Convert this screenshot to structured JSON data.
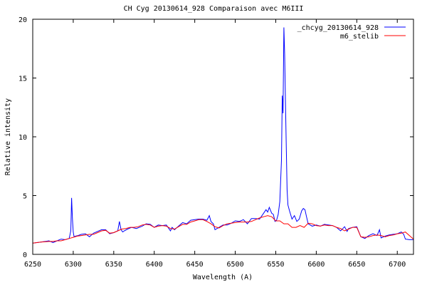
{
  "chart_data": {
    "type": "line",
    "title": "CH Cyg  20130614_928  Comparaison avec M6III",
    "xlabel": "Wavelength (A)",
    "ylabel": "Relative intensity",
    "xlim": [
      6250,
      6720
    ],
    "ylim": [
      0,
      20
    ],
    "xticks": [
      6250,
      6300,
      6350,
      6400,
      6450,
      6500,
      6550,
      6600,
      6650,
      6700
    ],
    "yticks": [
      0,
      5,
      10,
      15,
      20
    ],
    "grid": false,
    "legend_position": "top-right",
    "series": [
      {
        "name": "_chcyg_20130614_928",
        "color": "#0000ff",
        "x": [
          6250,
          6260,
          6270,
          6275,
          6280,
          6285,
          6290,
          6295,
          6297,
          6298,
          6299,
          6300,
          6301,
          6303,
          6306,
          6310,
          6315,
          6320,
          6325,
          6330,
          6335,
          6340,
          6345,
          6350,
          6355,
          6357,
          6359,
          6361,
          6363,
          6367,
          6372,
          6378,
          6385,
          6390,
          6395,
          6400,
          6405,
          6410,
          6415,
          6420,
          6422,
          6425,
          6430,
          6435,
          6440,
          6445,
          6450,
          6455,
          6460,
          6465,
          6468,
          6470,
          6473,
          6475,
          6480,
          6485,
          6490,
          6495,
          6500,
          6505,
          6510,
          6515,
          6520,
          6525,
          6530,
          6535,
          6538,
          6540,
          6542,
          6545,
          6547,
          6549,
          6551,
          6553,
          6555,
          6557,
          6558,
          6559,
          6560,
          6561,
          6562,
          6563,
          6564,
          6565,
          6567,
          6570,
          6573,
          6576,
          6579,
          6582,
          6584,
          6586,
          6588,
          6590,
          6595,
          6600,
          6605,
          6610,
          6615,
          6620,
          6625,
          6630,
          6635,
          6638,
          6640,
          6645,
          6650,
          6655,
          6660,
          6665,
          6670,
          6675,
          6678,
          6680,
          6685,
          6690,
          6695,
          6700,
          6705,
          6708,
          6710,
          6715,
          6720
        ],
        "values": [
          0.95,
          1.05,
          1.15,
          1.0,
          1.15,
          1.3,
          1.25,
          1.35,
          2.0,
          4.8,
          3.0,
          1.9,
          1.5,
          1.55,
          1.6,
          1.7,
          1.75,
          1.5,
          1.8,
          1.95,
          2.1,
          2.1,
          1.75,
          1.85,
          2.0,
          2.8,
          2.1,
          1.9,
          2.0,
          2.15,
          2.3,
          2.2,
          2.4,
          2.6,
          2.55,
          2.3,
          2.5,
          2.45,
          2.5,
          2.0,
          2.3,
          2.1,
          2.4,
          2.7,
          2.6,
          2.9,
          2.95,
          3.0,
          3.0,
          2.9,
          3.3,
          2.8,
          2.6,
          2.1,
          2.3,
          2.5,
          2.5,
          2.65,
          2.85,
          2.8,
          2.95,
          2.6,
          3.05,
          3.05,
          3.0,
          3.5,
          3.8,
          3.6,
          4.0,
          3.5,
          3.4,
          2.8,
          2.9,
          3.4,
          4.5,
          8.0,
          13.5,
          12.0,
          19.3,
          17.0,
          13.0,
          9.0,
          5.5,
          4.2,
          3.7,
          3.0,
          3.3,
          2.8,
          3.0,
          3.7,
          3.9,
          3.8,
          3.2,
          2.6,
          2.4,
          2.5,
          2.4,
          2.55,
          2.5,
          2.45,
          2.3,
          2.0,
          2.35,
          1.95,
          2.2,
          2.3,
          2.35,
          1.5,
          1.35,
          1.6,
          1.75,
          1.6,
          2.1,
          1.4,
          1.55,
          1.65,
          1.7,
          1.75,
          1.9,
          1.7,
          1.3,
          1.25,
          1.25
        ]
      },
      {
        "name": "m6_stelib",
        "color": "#ff0000",
        "x": [
          6250,
          6260,
          6270,
          6275,
          6280,
          6285,
          6290,
          6295,
          6300,
          6305,
          6310,
          6315,
          6320,
          6325,
          6330,
          6335,
          6340,
          6345,
          6350,
          6355,
          6360,
          6365,
          6370,
          6375,
          6380,
          6385,
          6390,
          6395,
          6400,
          6405,
          6410,
          6415,
          6420,
          6425,
          6430,
          6435,
          6440,
          6445,
          6450,
          6455,
          6460,
          6465,
          6470,
          6475,
          6480,
          6485,
          6490,
          6495,
          6500,
          6505,
          6510,
          6515,
          6520,
          6525,
          6530,
          6535,
          6540,
          6545,
          6550,
          6555,
          6560,
          6565,
          6570,
          6575,
          6580,
          6585,
          6590,
          6595,
          6600,
          6605,
          6610,
          6615,
          6620,
          6625,
          6630,
          6635,
          6640,
          6645,
          6650,
          6655,
          6660,
          6665,
          6670,
          6675,
          6680,
          6685,
          6690,
          6695,
          6700,
          6705,
          6710,
          6715,
          6720
        ],
        "values": [
          0.95,
          1.05,
          1.1,
          1.1,
          1.15,
          1.15,
          1.25,
          1.35,
          1.45,
          1.55,
          1.6,
          1.65,
          1.7,
          1.7,
          1.85,
          2.0,
          2.05,
          1.8,
          1.85,
          2.0,
          2.15,
          2.2,
          2.3,
          2.3,
          2.35,
          2.5,
          2.55,
          2.5,
          2.3,
          2.4,
          2.45,
          2.4,
          2.2,
          2.15,
          2.35,
          2.55,
          2.55,
          2.75,
          2.85,
          2.95,
          2.95,
          2.8,
          2.6,
          2.35,
          2.25,
          2.45,
          2.6,
          2.65,
          2.7,
          2.75,
          2.75,
          2.75,
          2.8,
          2.95,
          3.1,
          3.2,
          3.3,
          3.2,
          2.85,
          2.85,
          2.6,
          2.6,
          2.3,
          2.3,
          2.45,
          2.3,
          2.65,
          2.6,
          2.45,
          2.4,
          2.5,
          2.45,
          2.45,
          2.3,
          2.2,
          2.0,
          2.15,
          2.3,
          2.3,
          1.5,
          1.45,
          1.5,
          1.6,
          1.65,
          1.6,
          1.5,
          1.6,
          1.65,
          1.75,
          1.8,
          1.9,
          1.6,
          1.3
        ]
      }
    ]
  }
}
